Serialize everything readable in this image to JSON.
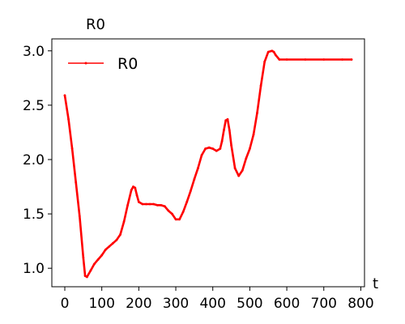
{
  "chart_data": {
    "type": "line",
    "title": "R0",
    "xlabel": "t",
    "ylabel": "",
    "xlim": [
      -35,
      810
    ],
    "ylim": [
      0.83,
      3.11
    ],
    "xticks": [
      "0",
      "100",
      "200",
      "300",
      "400",
      "500",
      "600",
      "700",
      "800"
    ],
    "xtick_values": [
      0,
      100,
      200,
      300,
      400,
      500,
      600,
      700,
      800
    ],
    "yticks": [
      "1.0",
      "1.5",
      "2.0",
      "2.5",
      "3.0"
    ],
    "ytick_values": [
      1.0,
      1.5,
      2.0,
      2.5,
      3.0
    ],
    "grid": false,
    "legend_position": "top-left",
    "series": [
      {
        "name": "R0",
        "color": "#ff0000",
        "x": [
          0,
          10,
          20,
          30,
          40,
          50,
          55,
          60,
          70,
          80,
          90,
          100,
          110,
          120,
          130,
          140,
          150,
          160,
          170,
          180,
          185,
          190,
          195,
          200,
          210,
          220,
          230,
          240,
          250,
          260,
          270,
          280,
          290,
          300,
          310,
          320,
          330,
          340,
          350,
          360,
          370,
          380,
          390,
          400,
          410,
          420,
          425,
          430,
          435,
          440,
          445,
          450,
          460,
          470,
          480,
          490,
          500,
          510,
          520,
          530,
          540,
          550,
          560,
          565,
          570,
          580,
          600,
          650,
          700,
          750,
          775
        ],
        "y": [
          2.59,
          2.37,
          2.1,
          1.79,
          1.48,
          1.1,
          0.93,
          0.92,
          0.98,
          1.04,
          1.08,
          1.12,
          1.17,
          1.2,
          1.23,
          1.26,
          1.31,
          1.43,
          1.58,
          1.72,
          1.75,
          1.74,
          1.67,
          1.61,
          1.59,
          1.59,
          1.59,
          1.59,
          1.58,
          1.58,
          1.57,
          1.53,
          1.5,
          1.45,
          1.45,
          1.52,
          1.61,
          1.71,
          1.82,
          1.92,
          2.04,
          2.1,
          2.11,
          2.1,
          2.08,
          2.1,
          2.17,
          2.27,
          2.36,
          2.37,
          2.27,
          2.13,
          1.92,
          1.85,
          1.9,
          2.01,
          2.1,
          2.23,
          2.43,
          2.68,
          2.9,
          2.99,
          3.0,
          2.99,
          2.96,
          2.92,
          2.92,
          2.92,
          2.92,
          2.92,
          2.92
        ]
      }
    ]
  }
}
